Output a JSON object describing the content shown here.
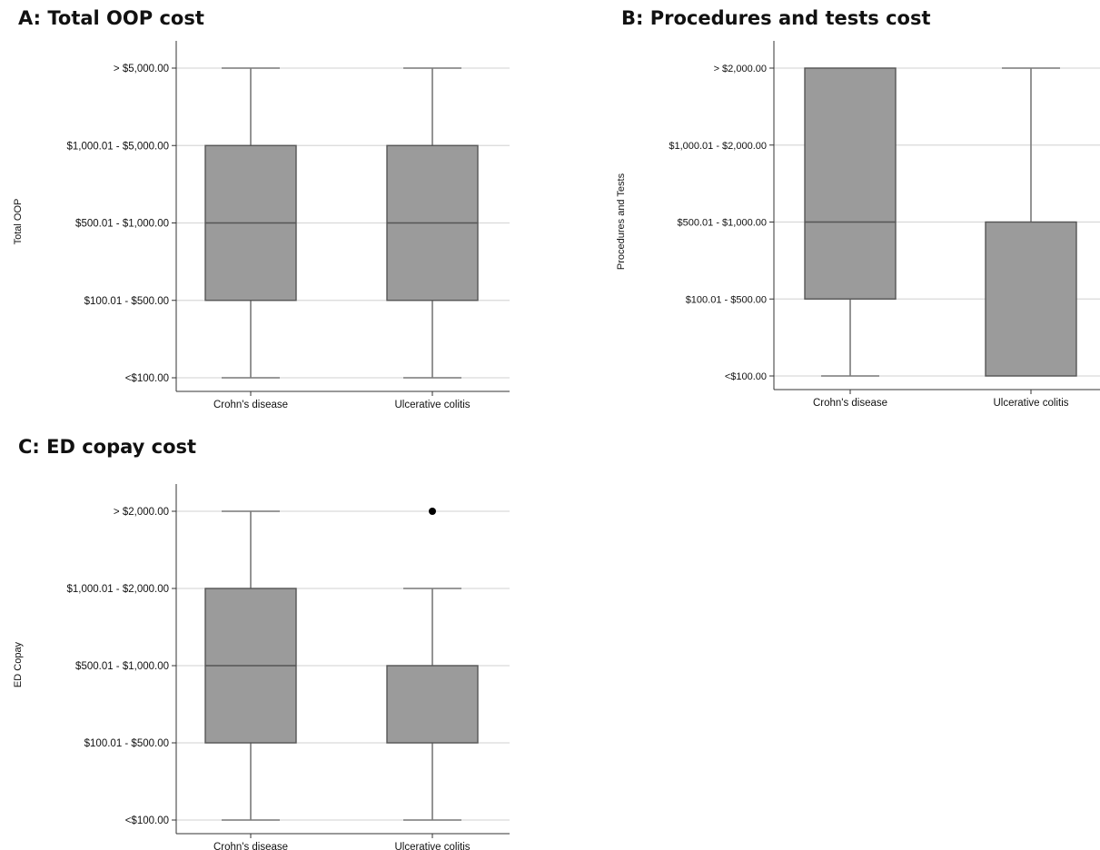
{
  "chart_data": [
    {
      "id": "A",
      "type": "boxplot",
      "title": "A: Total OOP cost",
      "ylabel": "Total OOP",
      "xlabel": "",
      "y_categories": [
        "<$100.00",
        "$100.01 - $500.00",
        "$500.01 - $1,000.00",
        "$1,000.01 - $5,000.00",
        "> $5,000.00"
      ],
      "categories": [
        "Crohn's disease",
        "Ulcerative colitis"
      ],
      "grid": true,
      "boxes": [
        {
          "category": "Crohn's disease",
          "min": 1,
          "q1": 2,
          "median": 3,
          "q3": 4,
          "max": 5,
          "outliers": []
        },
        {
          "category": "Ulcerative colitis",
          "min": 1,
          "q1": 2,
          "median": 3,
          "q3": 4,
          "max": 5,
          "outliers": []
        }
      ]
    },
    {
      "id": "B",
      "type": "boxplot",
      "title": "B: Procedures and tests cost",
      "ylabel": "Procedures and Tests",
      "xlabel": "",
      "y_categories": [
        "<$100.00",
        "$100.01 - $500.00",
        "$500.01 - $1,000.00",
        "$1,000.01 - $2,000.00",
        "> $2,000.00"
      ],
      "categories": [
        "Crohn's disease",
        "Ulcerative colitis"
      ],
      "grid": true,
      "boxes": [
        {
          "category": "Crohn's disease",
          "min": 1,
          "q1": 2,
          "median": 3,
          "q3": 5,
          "max": 5,
          "outliers": []
        },
        {
          "category": "Ulcerative colitis",
          "min": 1,
          "q1": 1,
          "median": 1,
          "q3": 3,
          "max": 5,
          "outliers": []
        }
      ]
    },
    {
      "id": "C",
      "type": "boxplot",
      "title": "C: ED copay cost",
      "ylabel": "ED Copay",
      "xlabel": "",
      "y_categories": [
        "<$100.00",
        "$100.01 - $500.00",
        "$500.01 - $1,000.00",
        "$1,000.01 - $2,000.00",
        "> $2,000.00"
      ],
      "categories": [
        "Crohn's disease",
        "Ulcerative colitis"
      ],
      "grid": true,
      "boxes": [
        {
          "category": "Crohn's disease",
          "min": 1,
          "q1": 2,
          "median": 3,
          "q3": 4,
          "max": 5,
          "outliers": []
        },
        {
          "category": "Ulcerative colitis",
          "min": 1,
          "q1": 2,
          "median": 2,
          "q3": 3,
          "max": 4,
          "outliers": [
            5
          ]
        }
      ]
    }
  ],
  "colors": {
    "box_fill": "#9b9b9b",
    "box_stroke": "#555555",
    "whisker": "#7a7a7a",
    "grid": "#d9d9d9",
    "axis": "#333333",
    "outlier": "#000000"
  }
}
